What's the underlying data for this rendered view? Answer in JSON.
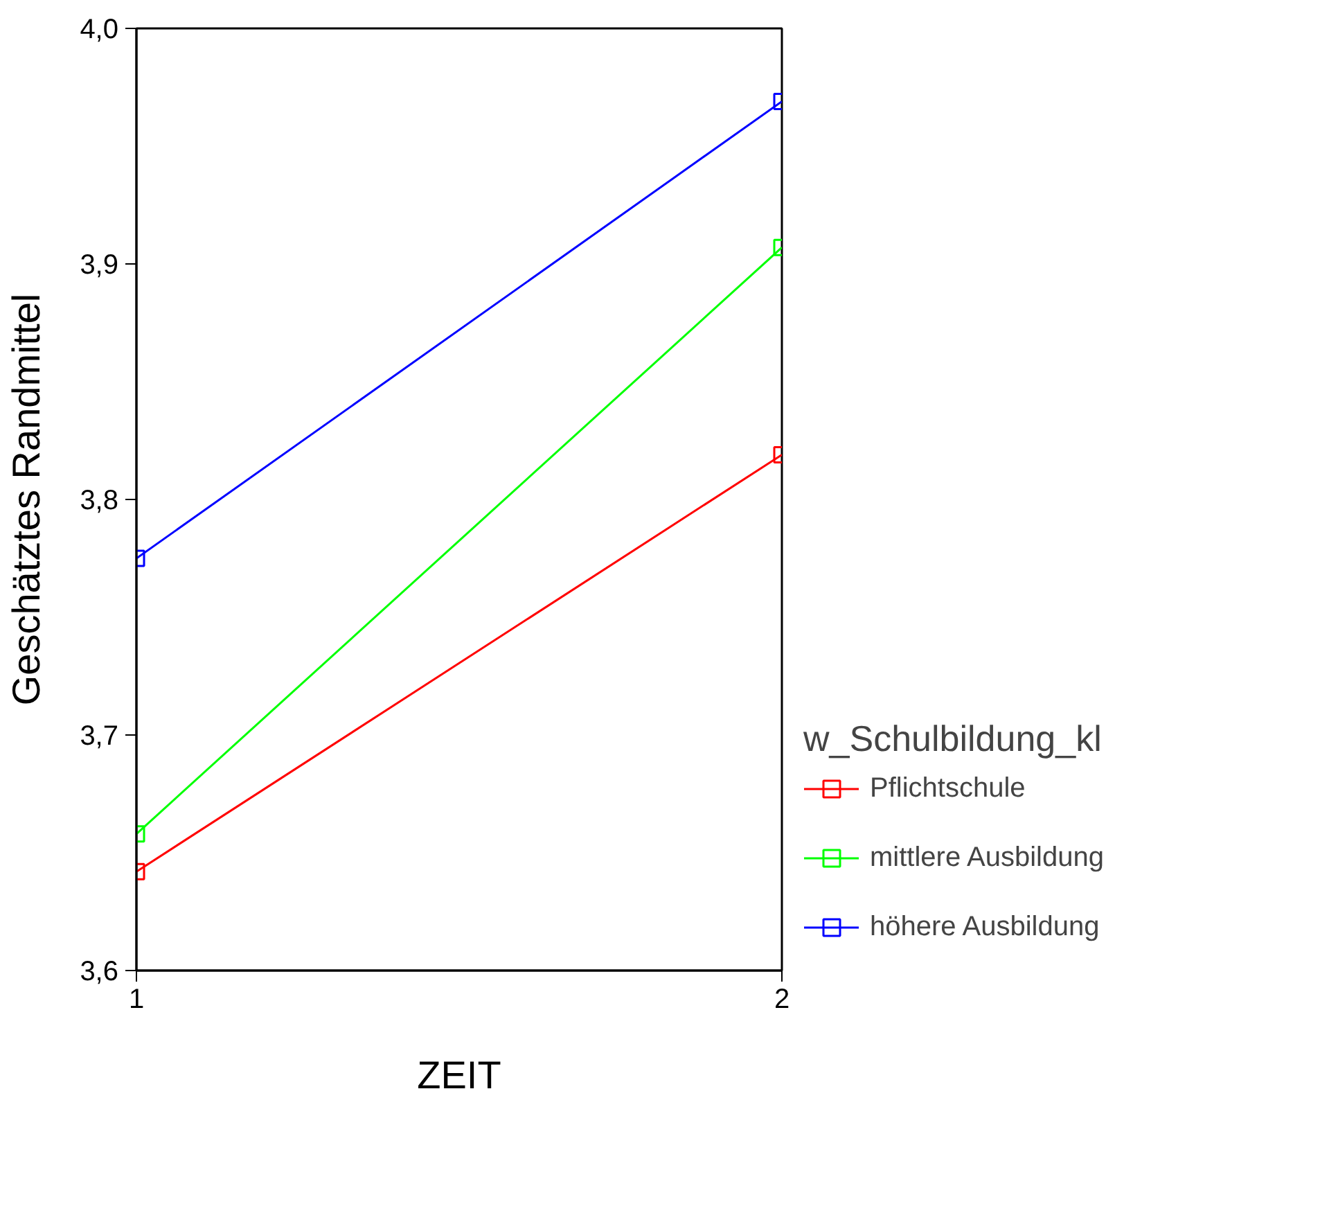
{
  "chart_data": {
    "type": "line",
    "xlabel": "ZEIT",
    "ylabel": "Geschätztes Randmittel",
    "legend_title": "w_Schulbildung_kl",
    "x": [
      1,
      2
    ],
    "series": [
      {
        "name": "Pflichtschule",
        "color": "#ff0000",
        "values": [
          3.642,
          3.819
        ]
      },
      {
        "name": "mittlere Ausbildung",
        "color": "#00ff00",
        "values": [
          3.658,
          3.907
        ]
      },
      {
        "name": "höhere Ausbildung",
        "color": "#0000ff",
        "values": [
          3.775,
          3.969
        ]
      }
    ],
    "xlim": [
      1,
      2
    ],
    "xticks": [
      1,
      2
    ],
    "ylim": [
      3.6,
      4.0
    ],
    "yticks": [
      {
        "value": 3.6,
        "label": "3,6"
      },
      {
        "value": 3.7,
        "label": "3,7"
      },
      {
        "value": 3.8,
        "label": "3,8"
      },
      {
        "value": 3.9,
        "label": "3,9"
      },
      {
        "value": 4.0,
        "label": "4,0"
      }
    ],
    "grid": false,
    "legend": "right",
    "marker": "square",
    "line_style": "solid"
  }
}
